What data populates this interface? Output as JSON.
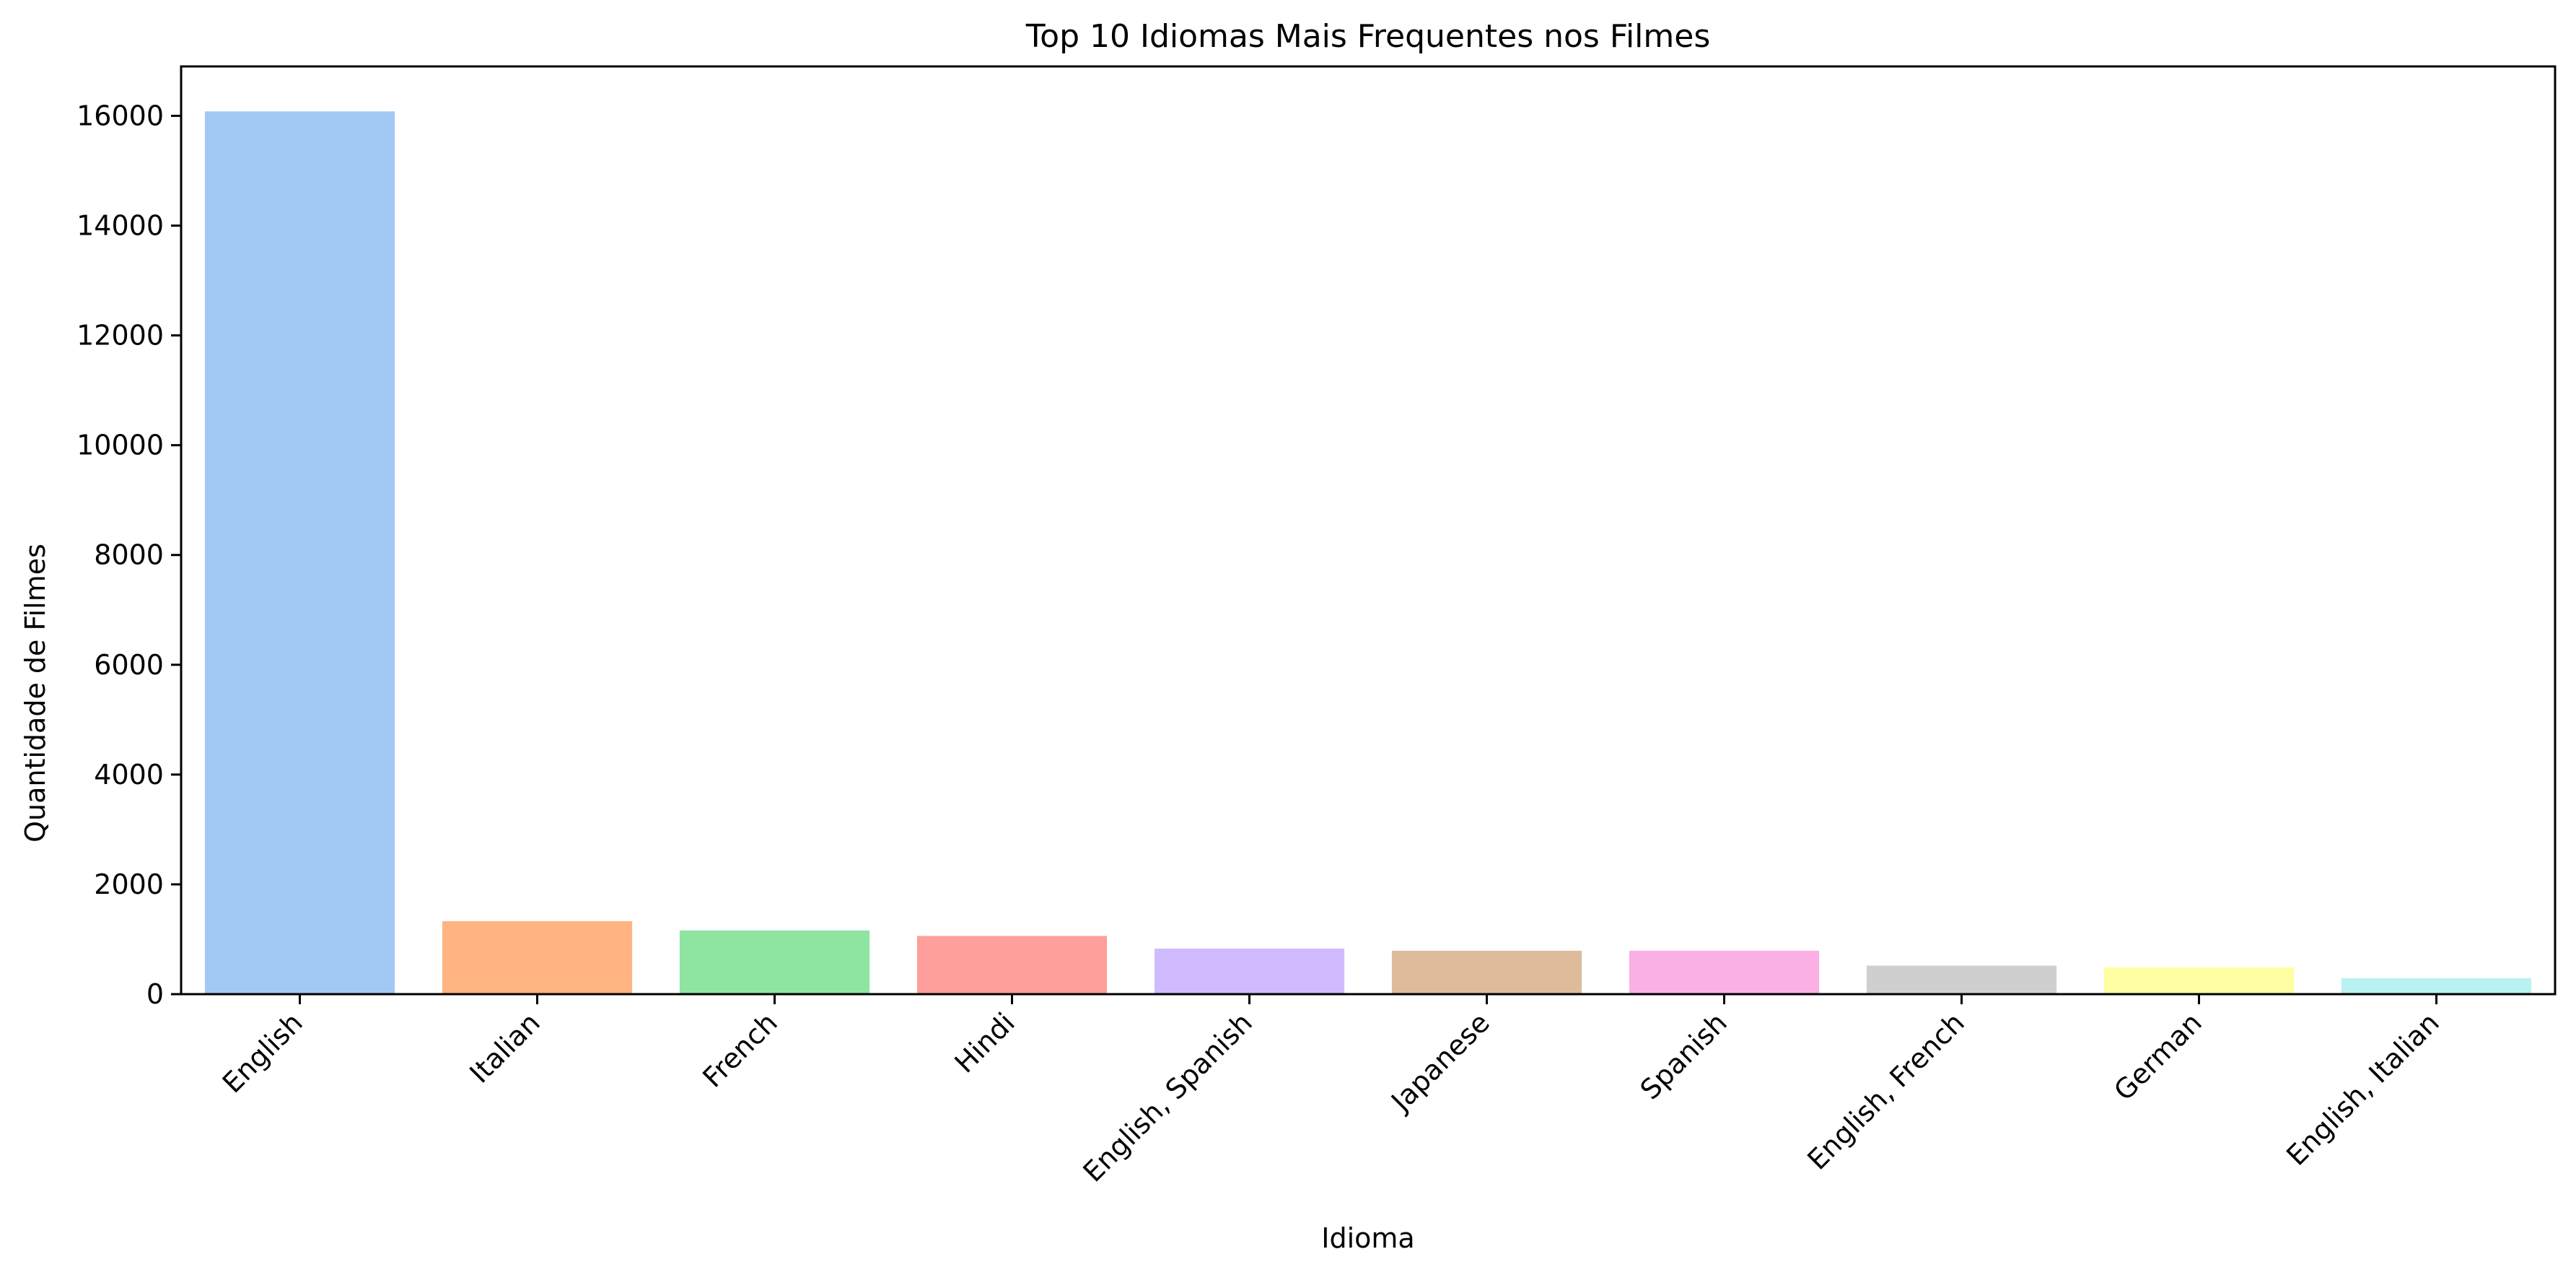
{
  "chart_data": {
    "type": "bar",
    "title": "Top 10 Idiomas Mais Frequentes nos Filmes",
    "xlabel": "Idioma",
    "ylabel": "Quantidade de Filmes",
    "categories": [
      "English",
      "Italian",
      "French",
      "Hindi",
      "English, Spanish",
      "Japanese",
      "Spanish",
      "English, French",
      "German",
      "English, Italian"
    ],
    "values": [
      16080,
      1330,
      1160,
      1060,
      830,
      790,
      790,
      520,
      490,
      290
    ],
    "ylim": [
      0,
      16900
    ],
    "yticks": [
      0,
      2000,
      4000,
      6000,
      8000,
      10000,
      12000,
      14000,
      16000
    ],
    "colors": [
      "#a1c9f4",
      "#ffb482",
      "#8de5a1",
      "#ff9f9b",
      "#d0bbff",
      "#debb9b",
      "#fab0e4",
      "#cfcfcf",
      "#fffea3",
      "#b9f2f0"
    ],
    "grid": false,
    "legend": "none"
  }
}
